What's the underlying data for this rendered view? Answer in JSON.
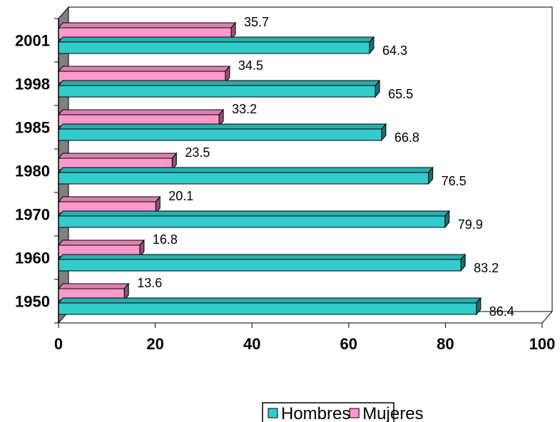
{
  "chart_data": {
    "type": "bar",
    "orientation": "horizontal",
    "categories": [
      "2001",
      "1998",
      "1985",
      "1980",
      "1970",
      "1960",
      "1950"
    ],
    "series": [
      {
        "name": "Mujeres",
        "color": "#ff99cc",
        "values": [
          35.7,
          34.5,
          33.2,
          23.5,
          20.1,
          16.8,
          13.6
        ]
      },
      {
        "name": "Hombres",
        "color": "#33cccc",
        "values": [
          64.3,
          65.5,
          66.8,
          76.5,
          79.9,
          83.2,
          86.4
        ]
      }
    ],
    "x_ticks": [
      "0",
      "20",
      "40",
      "60",
      "80",
      "100"
    ],
    "xlim": [
      0,
      100
    ],
    "grid": false,
    "legend": {
      "position": "bottom",
      "entries": [
        "Hombres",
        "Mujeres"
      ]
    }
  }
}
